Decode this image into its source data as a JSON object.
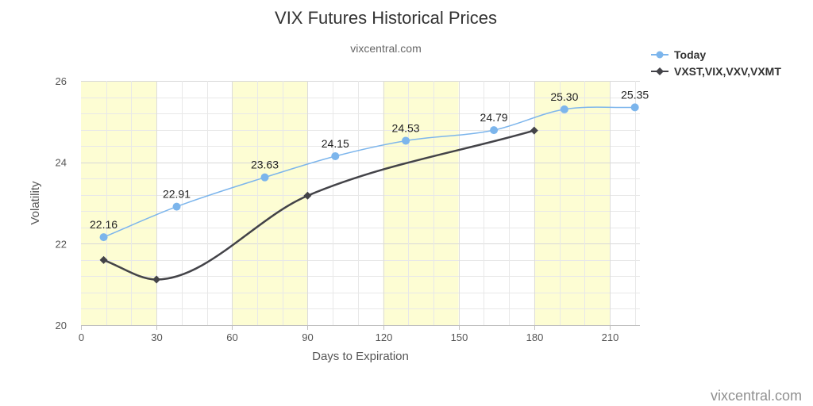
{
  "chart_data": {
    "type": "line",
    "title": "VIX Futures Historical Prices",
    "subtitle": "vixcentral.com",
    "xlabel": "Days to Expiration",
    "ylabel": "Volatility",
    "xlim": [
      0,
      222
    ],
    "ylim": [
      20,
      26
    ],
    "x_ticks": [
      0,
      30,
      60,
      90,
      120,
      150,
      180,
      210
    ],
    "y_ticks": [
      20,
      22,
      24,
      26
    ],
    "grid": true,
    "legend_position": "top-right",
    "shaded_bands": [
      [
        0,
        30
      ],
      [
        60,
        90
      ],
      [
        120,
        150
      ],
      [
        180,
        210
      ]
    ],
    "series": [
      {
        "name": "Today",
        "color": "#7cb5ec",
        "marker": "circle",
        "x": [
          9,
          38,
          73,
          101,
          129,
          164,
          192,
          220
        ],
        "values": [
          22.16,
          22.91,
          23.63,
          24.15,
          24.53,
          24.79,
          25.3,
          25.35
        ],
        "labels": [
          "22.16",
          "22.91",
          "23.63",
          "24.15",
          "24.53",
          "24.79",
          "25.30",
          "25.35"
        ]
      },
      {
        "name": "VXST,VIX,VXV,VXMT",
        "color": "#434348",
        "marker": "diamond",
        "x": [
          9,
          30,
          90,
          180
        ],
        "values": [
          21.6,
          21.12,
          23.18,
          24.78
        ]
      }
    ]
  },
  "credit": "vixcentral.com"
}
